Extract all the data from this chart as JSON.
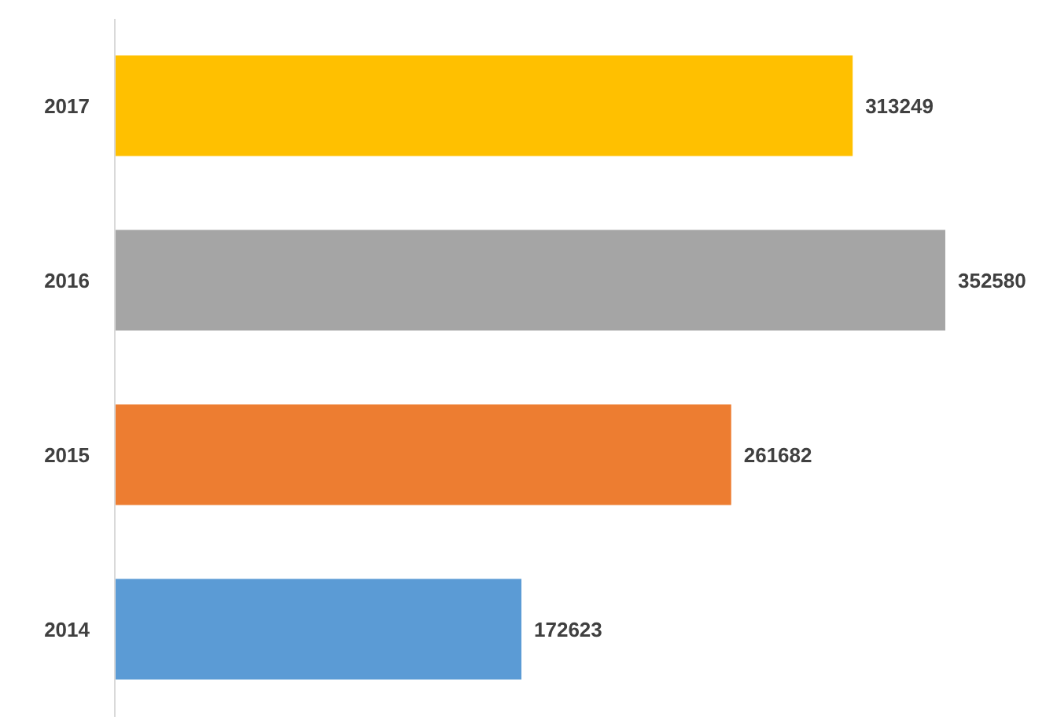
{
  "chart_data": {
    "type": "bar",
    "orientation": "horizontal",
    "categories": [
      "2017",
      "2016",
      "2015",
      "2014"
    ],
    "values": [
      313249,
      352580,
      261682,
      172623
    ],
    "colors": [
      "#ffc000",
      "#a5a5a5",
      "#ed7d31",
      "#5b9bd5"
    ],
    "xlim": [
      0,
      400000
    ],
    "data_labels": true,
    "tick_labels": "y"
  }
}
